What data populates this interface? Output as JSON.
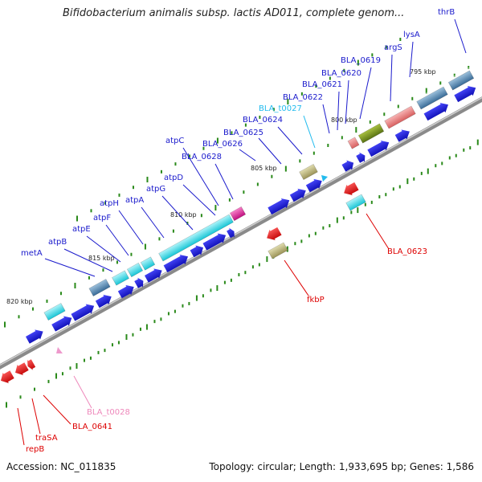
{
  "title": "Bifidobacterium animalis subsp. lactis AD011, complete genom...",
  "footer": {
    "accession": "Accession: NC_011835",
    "topology": "Topology: circular; Length: 1,933,695 bp; Genes: 1,586"
  },
  "colors": {
    "cds": "#1a1ad6",
    "rna": "#ee1111",
    "cyan": "#22d8e6",
    "steelblue": "#4a7ea8",
    "khaki": "#b8b070",
    "green": "#6e8c1c",
    "pink": "#e87c80",
    "magenta": "#e0209a",
    "tick": "#2a8a1a",
    "label_blue": "#1a1acc",
    "label_red": "#dd0000",
    "label_cyan": "#22bbee",
    "label_pink": "#ee88bb"
  },
  "scale": [
    "795 kbp",
    "800 kbp",
    "805 kbp",
    "810 kbp",
    "815 kbp",
    "820 kbp"
  ],
  "labels": {
    "thrB": "thrB",
    "lysA": "lysA",
    "argS": "argS",
    "BLA_0619": "BLA_0619",
    "BLA_0620": "BLA_0620",
    "BLA_0621": "BLA_0621",
    "BLA_0622": "BLA_0622",
    "BLA_t0027": "BLA_t0027",
    "BLA_0624": "BLA_0624",
    "BLA_0625": "BLA_0625",
    "BLA_0626": "BLA_0626",
    "atpC": "atpC",
    "BLA_0628": "BLA_0628",
    "atpD": "atpD",
    "atpG": "atpG",
    "atpA": "atpA",
    "atpH": "atpH",
    "atpF": "atpF",
    "atpE": "atpE",
    "atpB": "atpB",
    "metA": "metA",
    "BLA_0623": "BLA_0623",
    "fkbP": "fkbP",
    "BLA_t0028": "BLA_t0028",
    "BLA_0641": "BLA_0641",
    "traSA": "traSA",
    "repB": "repB"
  }
}
